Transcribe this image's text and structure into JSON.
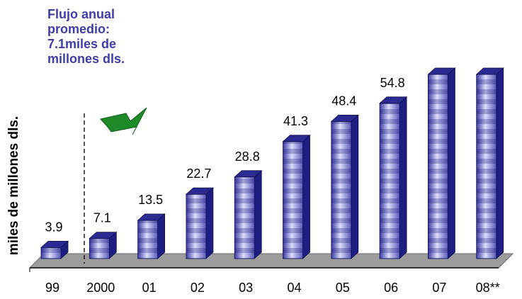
{
  "chart_data": {
    "type": "bar",
    "categories": [
      "99",
      "2000",
      "01",
      "02",
      "03",
      "04",
      "05",
      "06",
      "07",
      "08**"
    ],
    "values": [
      3.9,
      7.1,
      13.5,
      22.7,
      28.8,
      41.3,
      48.4,
      54.8,
      65.0,
      65.0
    ],
    "data_labels": [
      "3.9",
      "7.1",
      "13.5",
      "22.7",
      "28.8",
      "41.3",
      "48.4",
      "54.8",
      "",
      ""
    ],
    "ylabel": "miles de millones dls.",
    "xlabel": "",
    "title": "",
    "grid": false,
    "legend": "none",
    "annotation": [
      "Flujo anual",
      "promedio:",
      "7.1miles de",
      "millones dls."
    ],
    "divider_between": [
      "99",
      "2000"
    ],
    "colors": {
      "bar_dark": "#1e1e82",
      "bar_light": "#d8d8ff",
      "floor": "#9c9c9c",
      "annotation_text": "#3d3da8",
      "arrow": "#1e8a28"
    }
  }
}
